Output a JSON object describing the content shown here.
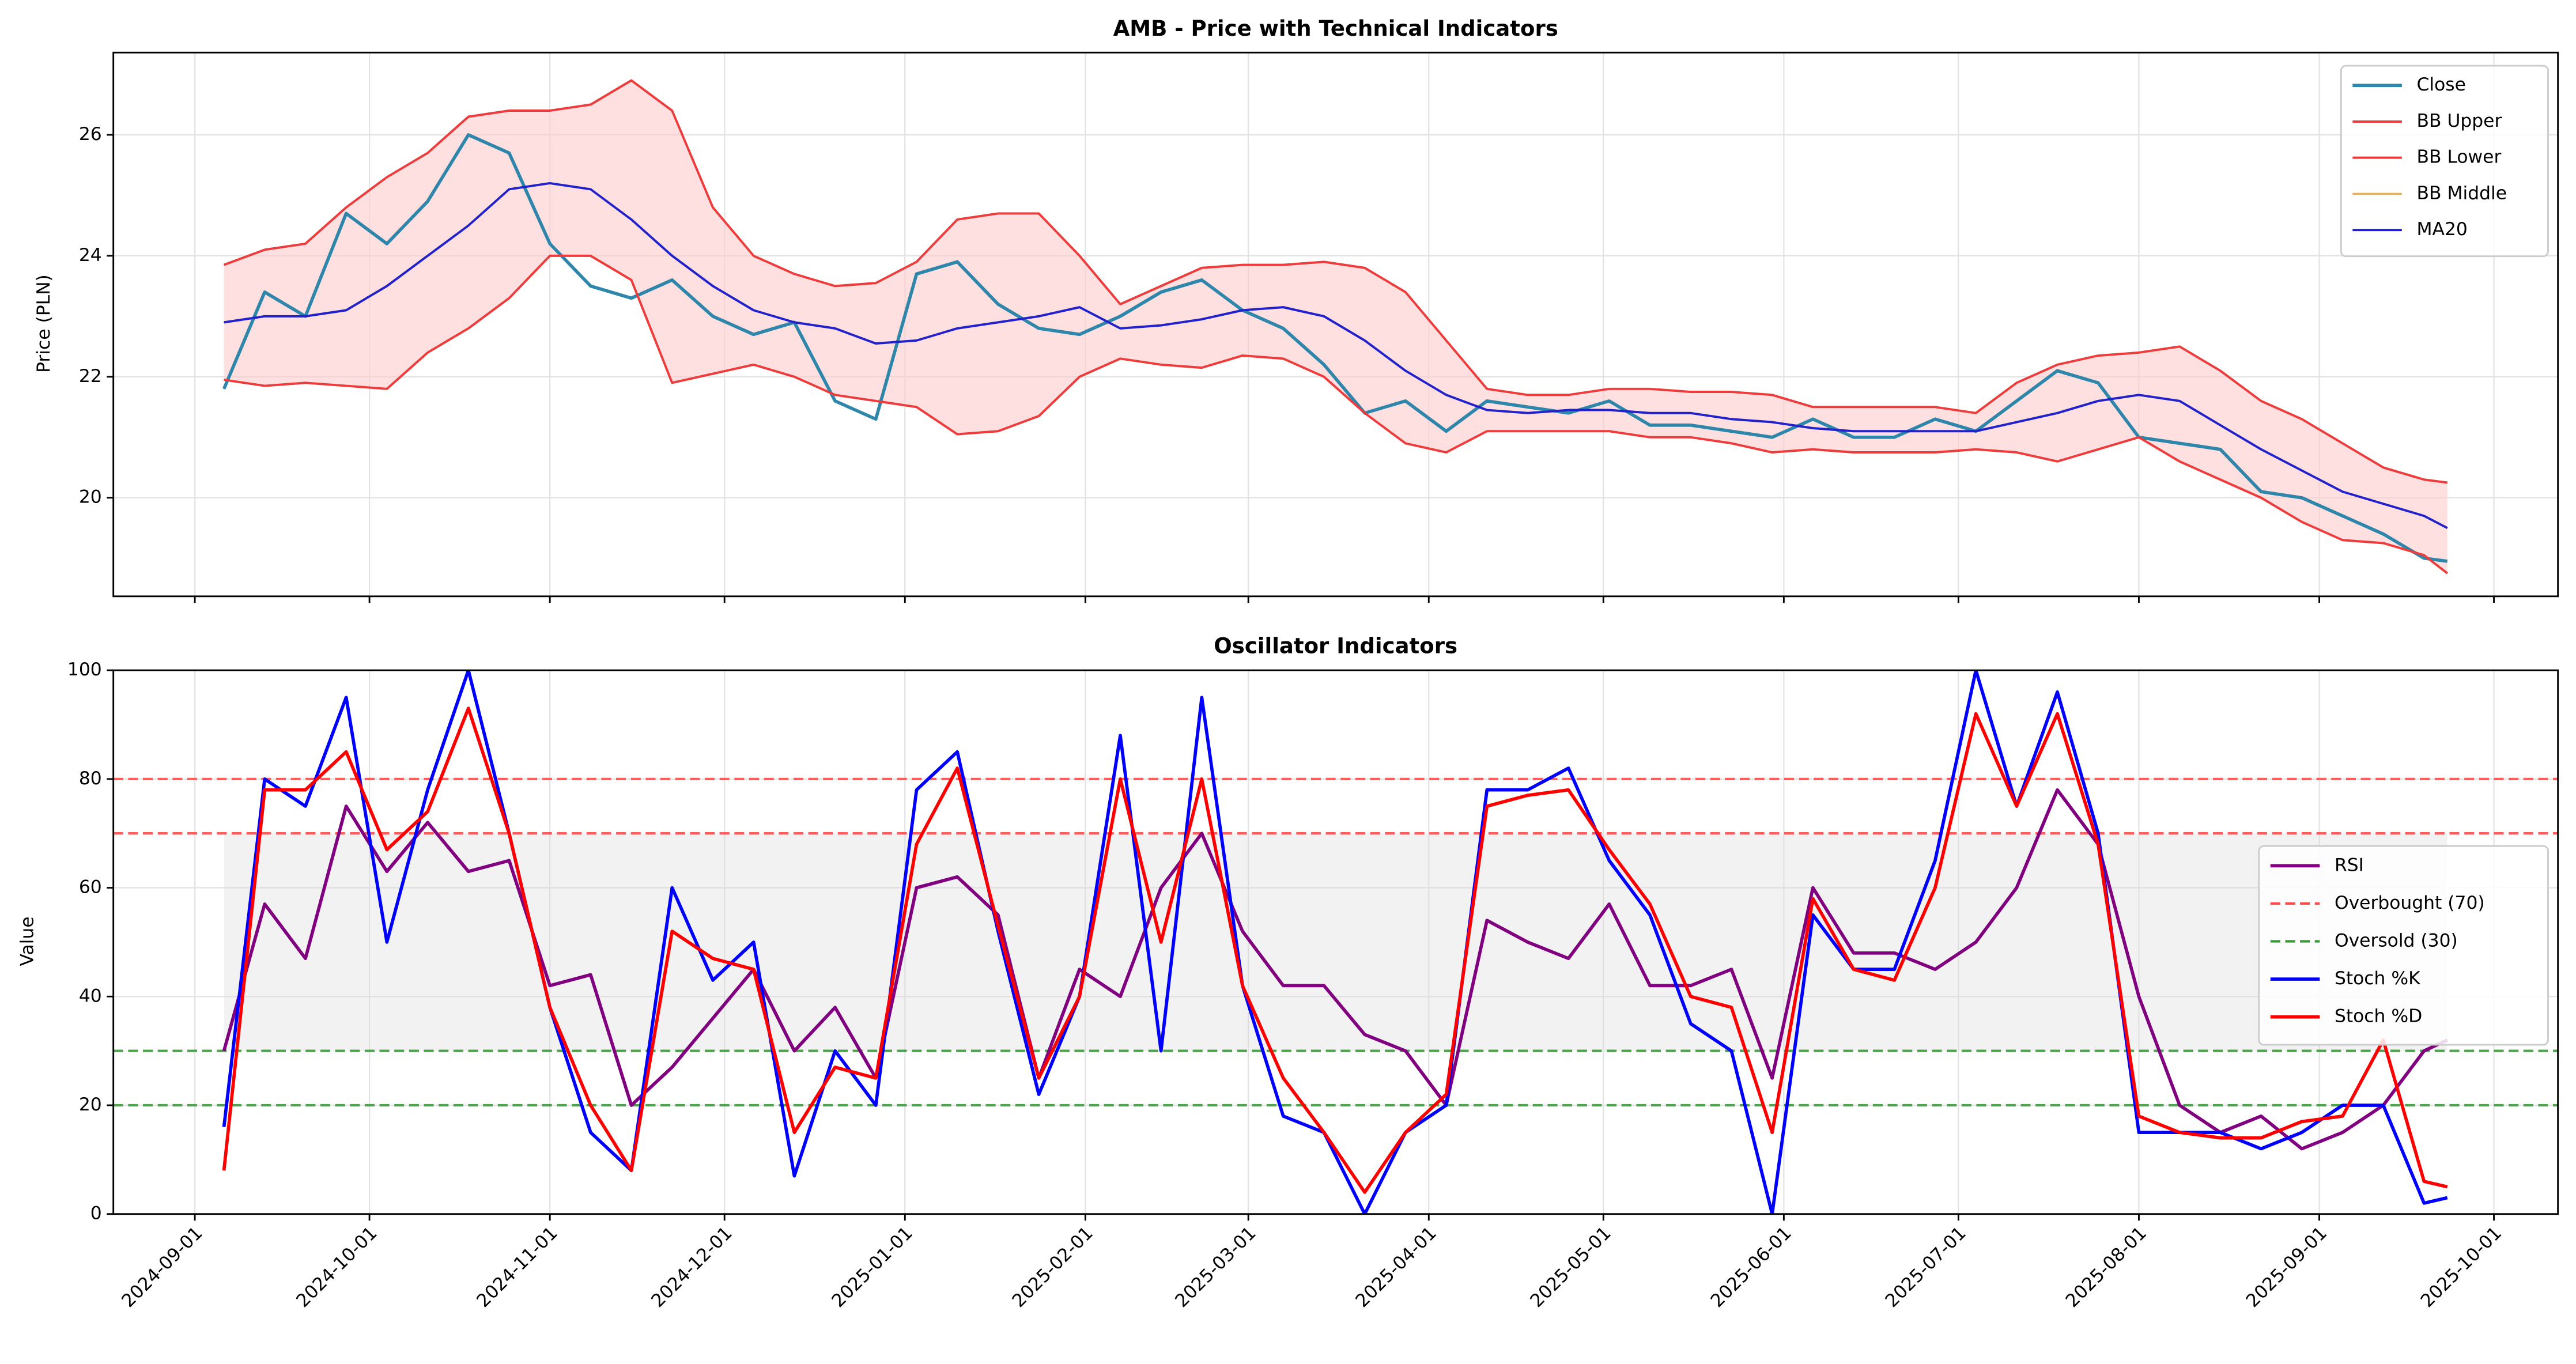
{
  "chart_data": [
    {
      "type": "line",
      "title": "AMB - Price with Technical Indicators",
      "y_label": "Price (PLN)",
      "x": [
        "2024-09-06",
        "2024-09-13",
        "2024-09-20",
        "2024-09-27",
        "2024-10-04",
        "2024-10-11",
        "2024-10-18",
        "2024-10-25",
        "2024-11-01",
        "2024-11-08",
        "2024-11-15",
        "2024-11-22",
        "2024-11-29",
        "2024-12-06",
        "2024-12-13",
        "2024-12-20",
        "2024-12-27",
        "2025-01-03",
        "2025-01-10",
        "2025-01-17",
        "2025-01-24",
        "2025-01-31",
        "2025-02-07",
        "2025-02-14",
        "2025-02-21",
        "2025-02-28",
        "2025-03-07",
        "2025-03-14",
        "2025-03-21",
        "2025-03-28",
        "2025-04-04",
        "2025-04-11",
        "2025-04-18",
        "2025-04-25",
        "2025-05-02",
        "2025-05-09",
        "2025-05-16",
        "2025-05-23",
        "2025-05-30",
        "2025-06-06",
        "2025-06-13",
        "2025-06-20",
        "2025-06-27",
        "2025-07-04",
        "2025-07-11",
        "2025-07-18",
        "2025-07-25",
        "2025-08-01",
        "2025-08-08",
        "2025-08-15",
        "2025-08-22",
        "2025-08-29",
        "2025-09-05",
        "2025-09-12",
        "2025-09-19",
        "2025-09-23"
      ],
      "series": [
        {
          "name": "Close",
          "color": "#2e86ab",
          "width": 2,
          "values": [
            21.8,
            23.4,
            23.0,
            24.7,
            24.2,
            24.9,
            26.0,
            25.7,
            24.2,
            23.5,
            23.3,
            23.6,
            23.0,
            22.7,
            22.9,
            21.6,
            21.3,
            23.7,
            23.9,
            23.2,
            22.8,
            22.7,
            23.0,
            23.4,
            23.6,
            23.1,
            22.8,
            22.2,
            21.4,
            21.6,
            21.1,
            21.6,
            21.5,
            21.4,
            21.6,
            21.2,
            21.2,
            21.1,
            21.0,
            21.3,
            21.0,
            21.0,
            21.3,
            21.1,
            21.6,
            22.1,
            21.9,
            21.0,
            20.9,
            20.8,
            20.1,
            20.0,
            19.7,
            19.4,
            19.0,
            18.95
          ]
        },
        {
          "name": "BB Upper",
          "color": "#ee3b3b",
          "width": 1.4,
          "values": [
            23.85,
            24.1,
            24.2,
            24.8,
            25.3,
            25.7,
            26.3,
            26.4,
            26.4,
            26.5,
            26.9,
            26.4,
            24.8,
            24.0,
            23.7,
            23.5,
            23.55,
            23.9,
            24.6,
            24.7,
            24.7,
            24.0,
            23.2,
            23.5,
            23.8,
            23.85,
            23.85,
            23.9,
            23.8,
            23.4,
            22.6,
            21.8,
            21.7,
            21.7,
            21.8,
            21.8,
            21.75,
            21.75,
            21.7,
            21.5,
            21.5,
            21.5,
            21.5,
            21.4,
            21.9,
            22.2,
            22.35,
            22.4,
            22.5,
            22.1,
            21.6,
            21.3,
            20.9,
            20.5,
            20.3,
            20.25
          ]
        },
        {
          "name": "BB Lower",
          "color": "#ee3b3b",
          "width": 1.4,
          "values": [
            21.95,
            21.85,
            21.9,
            21.85,
            21.8,
            22.4,
            22.8,
            23.3,
            24.0,
            24.0,
            23.6,
            21.9,
            22.05,
            22.2,
            22.0,
            21.7,
            21.6,
            21.5,
            21.05,
            21.1,
            21.35,
            22.0,
            22.3,
            22.2,
            22.15,
            22.35,
            22.3,
            22.0,
            21.4,
            20.9,
            20.75,
            21.1,
            21.1,
            21.1,
            21.1,
            21.0,
            21.0,
            20.9,
            20.75,
            20.8,
            20.75,
            20.75,
            20.75,
            20.8,
            20.75,
            20.6,
            20.8,
            21.0,
            20.6,
            20.3,
            20.0,
            19.6,
            19.3,
            19.25,
            19.05,
            18.75
          ]
        },
        {
          "name": "BB Middle",
          "color": "#f5b041",
          "width": 1.2,
          "values": [
            22.9,
            23.0,
            23.0,
            23.1,
            23.5,
            24.0,
            24.5,
            25.1,
            25.2,
            25.1,
            24.6,
            24.0,
            23.5,
            23.1,
            22.9,
            22.8,
            22.55,
            22.6,
            22.8,
            22.9,
            23.0,
            23.15,
            22.8,
            22.85,
            22.95,
            23.1,
            23.15,
            23.0,
            22.6,
            22.1,
            21.7,
            21.45,
            21.4,
            21.45,
            21.45,
            21.4,
            21.4,
            21.3,
            21.25,
            21.15,
            21.1,
            21.1,
            21.1,
            21.1,
            21.25,
            21.4,
            21.6,
            21.7,
            21.6,
            21.2,
            20.8,
            20.45,
            20.1,
            19.9,
            19.7,
            19.5
          ]
        },
        {
          "name": "MA20",
          "color": "#2222cc",
          "width": 1.4,
          "values": [
            22.9,
            23.0,
            23.0,
            23.1,
            23.5,
            24.0,
            24.5,
            25.1,
            25.2,
            25.1,
            24.6,
            24.0,
            23.5,
            23.1,
            22.9,
            22.8,
            22.55,
            22.6,
            22.8,
            22.9,
            23.0,
            23.15,
            22.8,
            22.85,
            22.95,
            23.1,
            23.15,
            23.0,
            22.6,
            22.1,
            21.7,
            21.45,
            21.4,
            21.45,
            21.45,
            21.4,
            21.4,
            21.3,
            21.25,
            21.15,
            21.1,
            21.1,
            21.1,
            21.1,
            21.25,
            21.4,
            21.6,
            21.7,
            21.6,
            21.2,
            20.8,
            20.45,
            20.1,
            19.9,
            19.7,
            19.5
          ]
        }
      ],
      "fill_color": "#ffcccc",
      "xlim": [
        "2024-08-18",
        "2025-10-12"
      ],
      "ylim": [
        18.37,
        27.36
      ],
      "yticks": [
        20,
        22,
        24,
        26
      ],
      "grid": true,
      "legend": "upper right"
    },
    {
      "type": "line",
      "title": "Oscillator Indicators",
      "y_label": "Value",
      "x": [
        "2024-09-06",
        "2024-09-13",
        "2024-09-20",
        "2024-09-27",
        "2024-10-04",
        "2024-10-11",
        "2024-10-18",
        "2024-10-25",
        "2024-11-01",
        "2024-11-08",
        "2024-11-15",
        "2024-11-22",
        "2024-11-29",
        "2024-12-06",
        "2024-12-13",
        "2024-12-20",
        "2024-12-27",
        "2025-01-03",
        "2025-01-10",
        "2025-01-17",
        "2025-01-24",
        "2025-01-31",
        "2025-02-07",
        "2025-02-14",
        "2025-02-21",
        "2025-02-28",
        "2025-03-07",
        "2025-03-14",
        "2025-03-21",
        "2025-03-28",
        "2025-04-04",
        "2025-04-11",
        "2025-04-18",
        "2025-04-25",
        "2025-05-02",
        "2025-05-09",
        "2025-05-16",
        "2025-05-23",
        "2025-05-30",
        "2025-06-06",
        "2025-06-13",
        "2025-06-20",
        "2025-06-27",
        "2025-07-04",
        "2025-07-11",
        "2025-07-18",
        "2025-07-25",
        "2025-08-01",
        "2025-08-08",
        "2025-08-15",
        "2025-08-22",
        "2025-08-29",
        "2025-09-05",
        "2025-09-12",
        "2025-09-19",
        "2025-09-23"
      ],
      "series": [
        {
          "name": "RSI",
          "color": "#800080",
          "width": 2,
          "values": [
            30,
            57,
            47,
            75,
            63,
            72,
            63,
            65,
            42,
            44,
            20,
            27,
            36,
            45,
            30,
            38,
            25,
            60,
            62,
            55,
            25,
            45,
            40,
            60,
            70,
            52,
            42,
            42,
            33,
            30,
            20,
            54,
            50,
            47,
            57,
            42,
            42,
            45,
            25,
            60,
            48,
            48,
            45,
            50,
            60,
            78,
            68,
            40,
            20,
            15,
            18,
            12,
            15,
            20,
            30,
            32
          ]
        },
        {
          "name": "Stoch %K",
          "color": "#0000ff",
          "width": 2,
          "values": [
            16,
            80,
            75,
            95,
            50,
            78,
            100,
            70,
            38,
            15,
            8,
            60,
            43,
            50,
            7,
            30,
            20,
            78,
            85,
            52,
            22,
            40,
            88,
            30,
            95,
            42,
            18,
            15,
            0,
            15,
            20,
            78,
            78,
            82,
            65,
            55,
            35,
            30,
            0,
            55,
            45,
            45,
            65,
            100,
            75,
            96,
            70,
            15,
            15,
            15,
            12,
            15,
            20,
            20,
            2,
            3
          ]
        },
        {
          "name": "Stoch %D",
          "color": "#ff0000",
          "width": 2,
          "values": [
            8,
            78,
            78,
            85,
            67,
            74,
            93,
            70,
            38,
            20,
            8,
            52,
            47,
            45,
            15,
            27,
            25,
            68,
            82,
            53,
            25,
            40,
            80,
            50,
            80,
            42,
            25,
            15,
            4,
            15,
            22,
            75,
            77,
            78,
            67,
            57,
            40,
            38,
            15,
            58,
            45,
            43,
            60,
            92,
            75,
            92,
            68,
            18,
            15,
            14,
            14,
            17,
            18,
            32,
            6,
            5
          ]
        }
      ],
      "hlines": [
        {
          "name": "Overbought (70)",
          "value": 70,
          "color": "#ff4d4d"
        },
        {
          "name": "Oversold (30)",
          "value": 30,
          "color": "#3a9a3a"
        },
        {
          "value": 80,
          "color": "#ff4d4d"
        },
        {
          "value": 20,
          "color": "#3a9a3a"
        }
      ],
      "band_color": "#d9d9d9",
      "xlim": [
        "2024-08-18",
        "2025-10-12"
      ],
      "ylim": [
        0,
        100
      ],
      "yticks": [
        0,
        20,
        40,
        60,
        80,
        100
      ],
      "xticks": [
        "2024-09-01",
        "2024-10-01",
        "2024-11-01",
        "2024-12-01",
        "2025-01-01",
        "2025-02-01",
        "2025-03-01",
        "2025-04-01",
        "2025-05-01",
        "2025-06-01",
        "2025-07-01",
        "2025-08-01",
        "2025-09-01",
        "2025-10-01"
      ],
      "grid": true,
      "legend": "center right"
    }
  ]
}
